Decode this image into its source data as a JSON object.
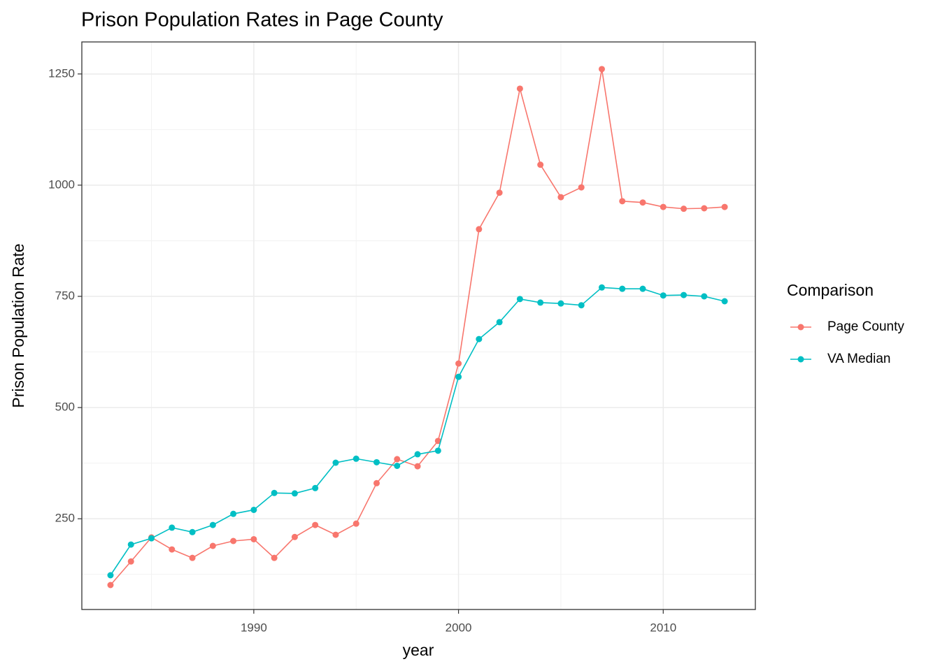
{
  "chart_data": {
    "type": "line",
    "title": "Prison Population Rates in Page County",
    "x_label": "year",
    "y_label": "Prison Population Rate",
    "legend_title": "Comparison",
    "legend_position": "right",
    "grid": true,
    "x": [
      1983,
      1984,
      1985,
      1986,
      1987,
      1988,
      1989,
      1990,
      1991,
      1992,
      1993,
      1994,
      1995,
      1996,
      1997,
      1998,
      1999,
      2000,
      2001,
      2002,
      2003,
      2004,
      2005,
      2006,
      2007,
      2008,
      2009,
      2010,
      2011,
      2012,
      2013
    ],
    "series": [
      {
        "name": "Page County",
        "color": "#F8766D",
        "values": [
          101,
          154,
          208,
          181,
          162,
          189,
          200,
          204,
          162,
          209,
          236,
          214,
          239,
          330,
          384,
          368,
          425,
          599,
          901,
          983,
          1217,
          1046,
          973,
          995,
          1261,
          964,
          961,
          951,
          947,
          948,
          951
        ]
      },
      {
        "name": "VA Median",
        "color": "#00BFC4",
        "values": [
          123,
          192,
          206,
          230,
          220,
          236,
          261,
          270,
          308,
          307,
          319,
          376,
          385,
          377,
          369,
          395,
          403,
          569,
          654,
          692,
          744,
          736,
          734,
          730,
          770,
          767,
          767,
          752,
          753,
          750,
          739
        ]
      }
    ],
    "xlim": [
      1981.6,
      2014.5
    ],
    "ylim": [
      46,
      1322
    ],
    "xticks": [
      1990,
      2000,
      2010
    ],
    "yticks": [
      250,
      500,
      750,
      1000,
      1250
    ],
    "x_minor_ticks": [
      1985,
      1995,
      2005
    ],
    "y_minor_ticks": [
      125,
      375,
      625,
      875,
      1125
    ]
  }
}
